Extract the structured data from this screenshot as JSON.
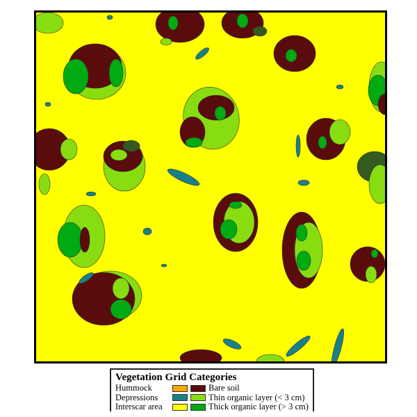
{
  "legend": {
    "title": "Vegetation Grid Categories",
    "rows": [
      {
        "left_label": "Hummock",
        "left_color": "#f5a800",
        "right_label": "Bare soil",
        "right_color": "#5a0c0c"
      },
      {
        "left_label": "Depressions",
        "left_color": "#1a8088",
        "right_label": "Thin organic layer (< 3 cm)",
        "right_color": "#88dd11"
      },
      {
        "left_label": "Interscar area",
        "left_color": "#ffff00",
        "right_label": "Thick organic layer (> 3 cm)",
        "right_color": "#00aa11"
      }
    ]
  },
  "colors": {
    "interscar": "#ffff00",
    "bare_soil": "#5a0c0c",
    "thin": "#88dd11",
    "thick": "#00aa11",
    "depression": "#1a8088",
    "dark_vegetation": "#345a20"
  }
}
